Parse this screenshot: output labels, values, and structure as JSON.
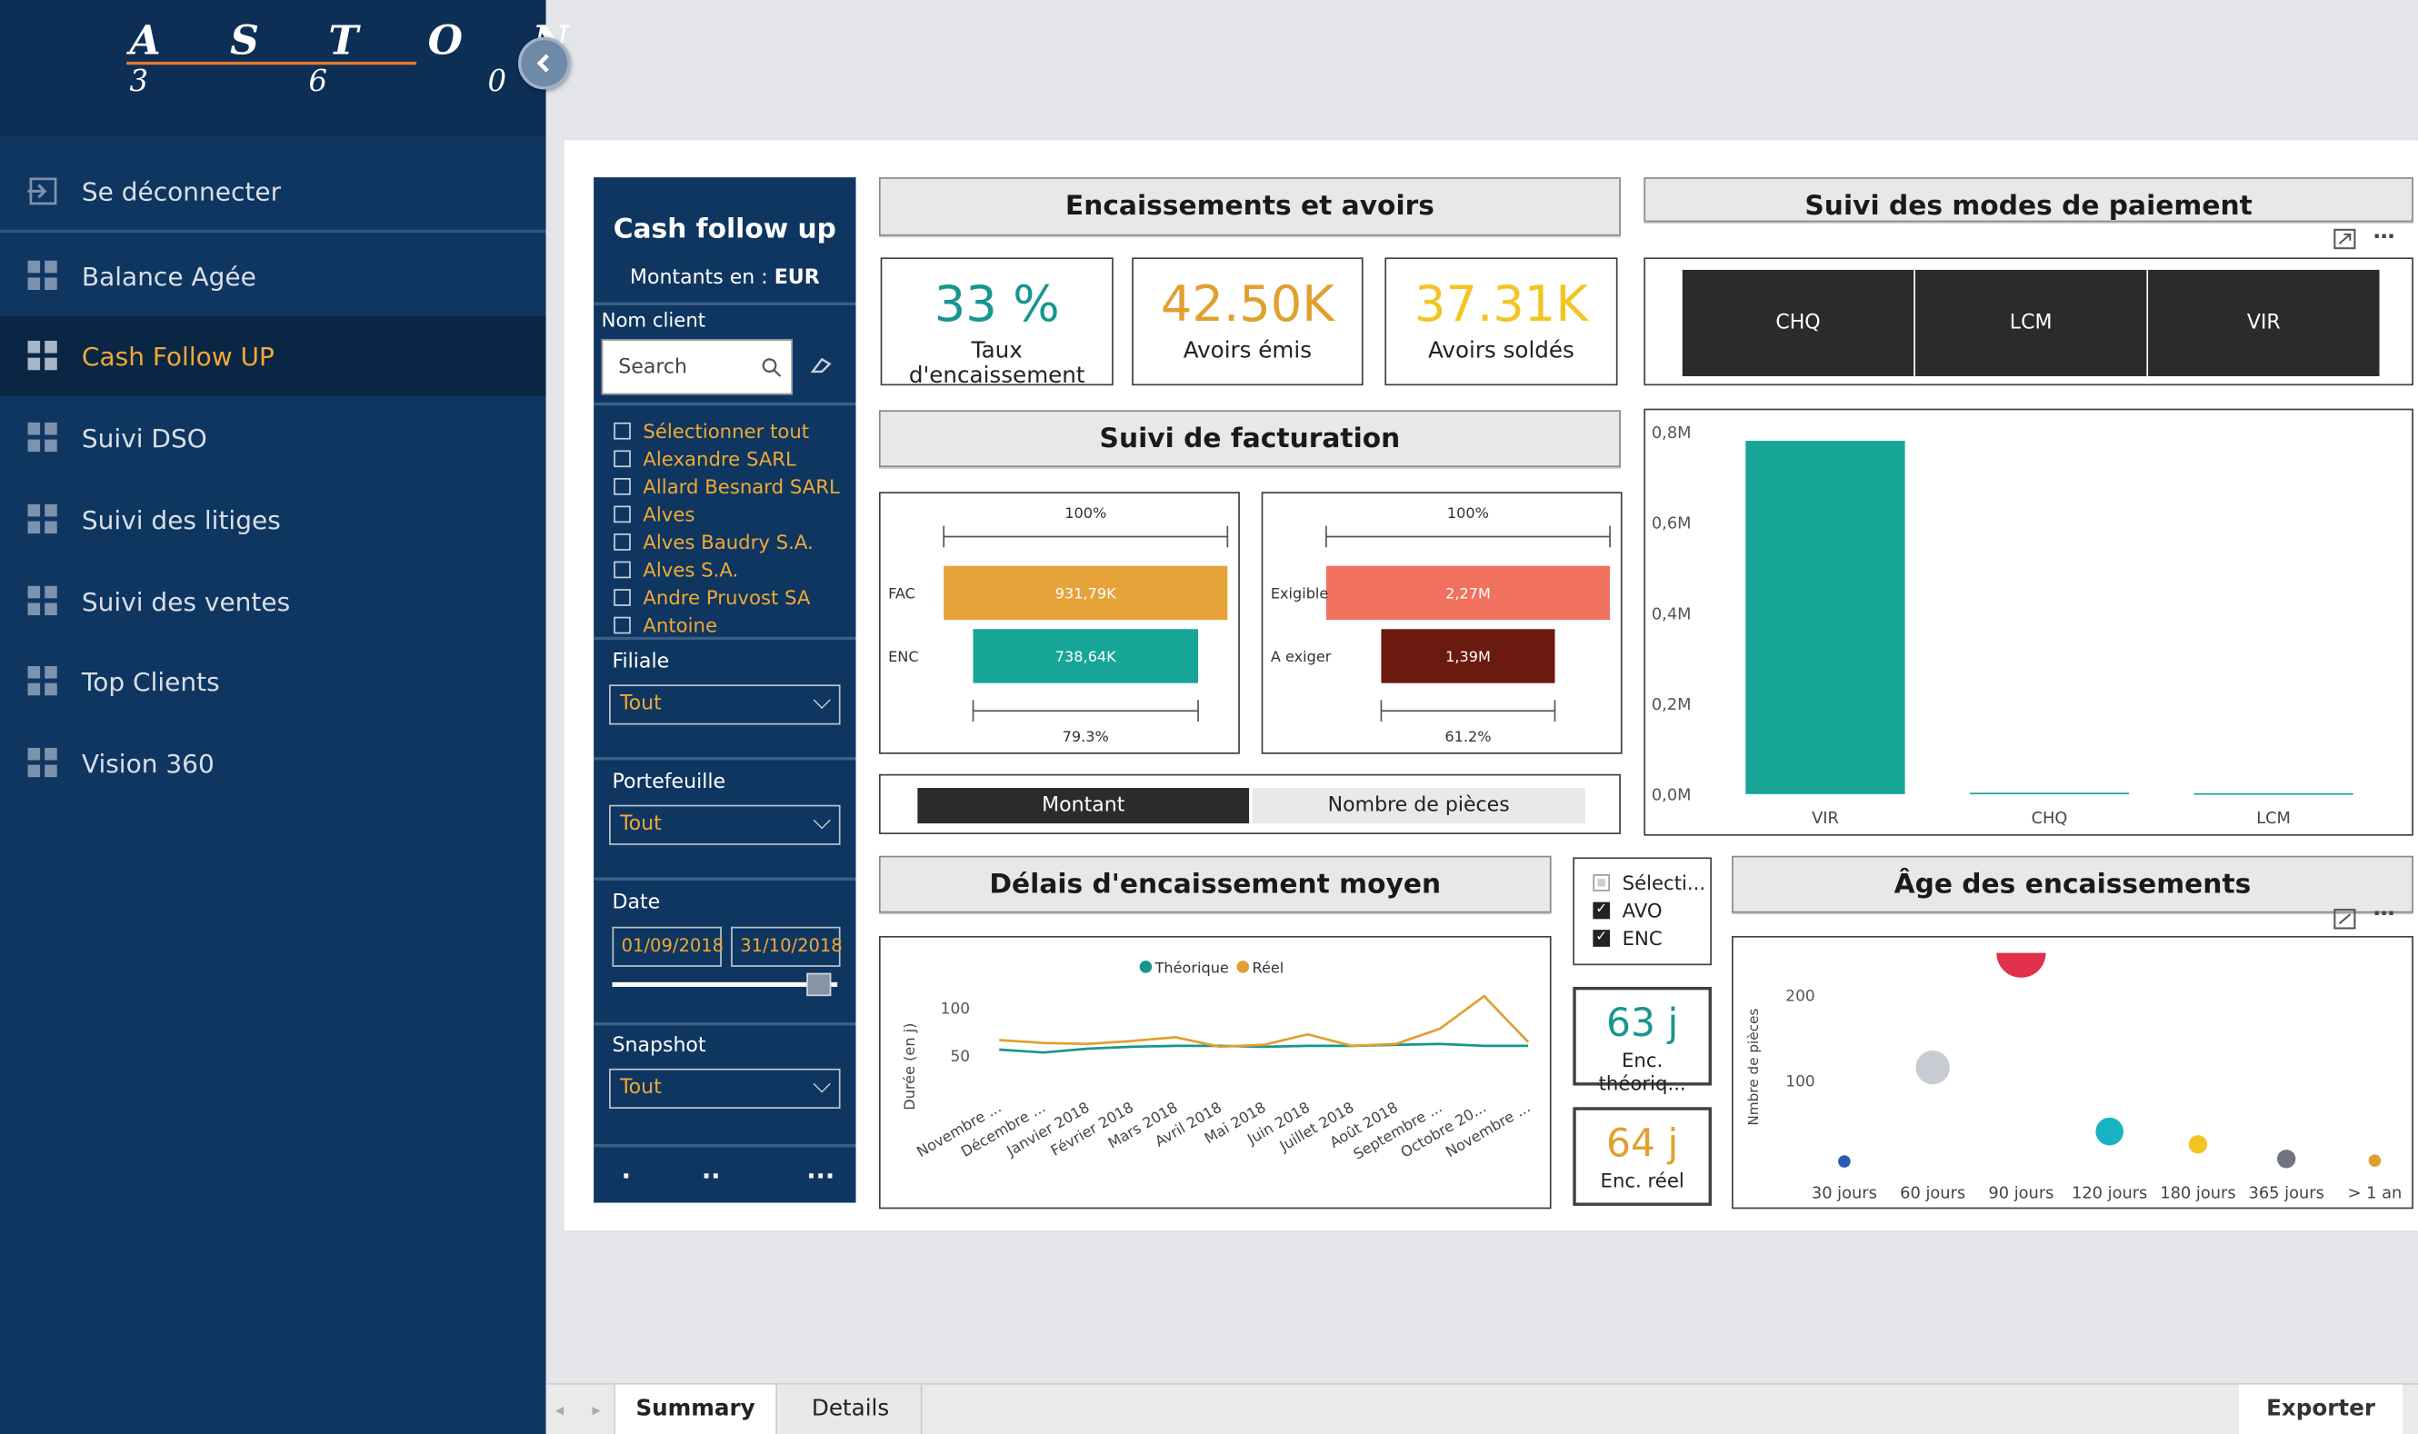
{
  "brand": {
    "logo_top": "A S T O N",
    "logo_bottom": "3 6 0"
  },
  "sidebar": {
    "items": [
      {
        "label": "Se déconnecter",
        "icon": "logout-icon"
      },
      {
        "label": "Balance Agée",
        "icon": "grid-icon"
      },
      {
        "label": "Cash Follow UP",
        "icon": "grid-icon",
        "active": true
      },
      {
        "label": "Suivi DSO",
        "icon": "grid-icon"
      },
      {
        "label": "Suivi des litiges",
        "icon": "grid-icon"
      },
      {
        "label": "Suivi des ventes",
        "icon": "grid-icon"
      },
      {
        "label": "Top Clients",
        "icon": "grid-icon"
      },
      {
        "label": "Vision 360",
        "icon": "grid-icon"
      }
    ]
  },
  "filters": {
    "title": "Cash follow up",
    "currency_prefix": "Montants en : ",
    "currency": "EUR",
    "client_label": "Nom client",
    "search_placeholder": "Search",
    "clients": [
      "Sélectionner tout",
      "Alexandre SARL",
      "Allard Besnard SARL",
      "Alves",
      "Alves Baudry S.A.",
      "Alves S.A.",
      "Andre Pruvost SA",
      "Antoine"
    ],
    "filiale_label": "Filiale",
    "filiale_value": "Tout",
    "portefeuille_label": "Portefeuille",
    "portefeuille_value": "Tout",
    "date_label": "Date",
    "date_start": "01/09/2018",
    "date_end": "31/10/2018",
    "snapshot_label": "Snapshot",
    "snapshot_value": "Tout",
    "pager": [
      ".",
      "..",
      "..."
    ]
  },
  "encaissements": {
    "title": "Encaissements et avoirs",
    "kpis": [
      {
        "value": "33 %",
        "label": "Taux d'encaissement",
        "color": "#17968f"
      },
      {
        "value": "42.50K",
        "label": "Avoirs émis",
        "color": "#e0a030"
      },
      {
        "value": "37.31K",
        "label": "Avoirs soldés",
        "color": "#f2c523"
      }
    ]
  },
  "facturation": {
    "title": "Suivi de facturation",
    "funnel1": {
      "top_pct": "100%",
      "bottom_pct": "79.3%",
      "rows": [
        {
          "label": "FAC",
          "value": "931,79K",
          "color": "#e6a33a",
          "fraction": 1.0
        },
        {
          "label": "ENC",
          "value": "738,64K",
          "color": "#16a596",
          "fraction": 0.793
        }
      ]
    },
    "funnel2": {
      "top_pct": "100%",
      "bottom_pct": "61.2%",
      "rows": [
        {
          "label": "Exigible",
          "value": "2,27M",
          "color": "#f1715f",
          "fraction": 1.0
        },
        {
          "label": "A exiger",
          "value": "1,39M",
          "color": "#6b1a0f",
          "fraction": 0.612
        }
      ]
    },
    "toggle": [
      "Montant",
      "Nombre de pièces"
    ]
  },
  "paiement": {
    "title": "Suivi des modes de paiement",
    "buttons": [
      "CHQ",
      "LCM",
      "VIR"
    ],
    "chart_data": {
      "type": "bar",
      "categories": [
        "VIR",
        "CHQ",
        "LCM"
      ],
      "values": [
        0.78,
        0.003,
        0.002
      ],
      "ylim": [
        0,
        0.8
      ],
      "yticks": [
        "0,0M",
        "0,2M",
        "0,4M",
        "0,6M",
        "0,8M"
      ],
      "color": "#17a596"
    }
  },
  "delais": {
    "title": "Délais d'encaissement moyen",
    "chart_data": {
      "type": "line",
      "ylabel": "Durée (en j)",
      "yticks": [
        "50",
        "100"
      ],
      "ylim": [
        20,
        125
      ],
      "categories": [
        "Novembre ...",
        "Décembre ...",
        "Janvier 2018",
        "Février 2018",
        "Mars 2018",
        "Avril 2018",
        "Mai 2018",
        "Juin 2018",
        "Juillet 2018",
        "Août 2018",
        "Septembre ...",
        "Octobre 20...",
        "Novembre ..."
      ],
      "series": [
        {
          "name": "Théorique",
          "color": "#17968f",
          "values": [
            56,
            53,
            57,
            59,
            60,
            60,
            59,
            60,
            60,
            61,
            62,
            60,
            60
          ]
        },
        {
          "name": "Réel",
          "color": "#e0a030",
          "values": [
            66,
            63,
            62,
            65,
            69,
            59,
            61,
            72,
            60,
            62,
            78,
            112,
            64
          ]
        }
      ]
    }
  },
  "type_filter": {
    "items": [
      {
        "label": "Sélecti...",
        "checked": false
      },
      {
        "label": "AVO",
        "checked": true
      },
      {
        "label": "ENC",
        "checked": true
      }
    ]
  },
  "enc_kpis": [
    {
      "value": "63 j",
      "label": "Enc. théoriq...",
      "color": "#17968f"
    },
    {
      "value": "64 j",
      "label": "Enc. réel",
      "color": "#e0a030"
    }
  ],
  "age": {
    "title": "Âge des encaissements",
    "chart_data": {
      "type": "scatter",
      "ylabel": "Nmbre de pièces",
      "yticks": [
        "100",
        "200"
      ],
      "ylim": [
        0,
        240
      ],
      "categories": [
        "30 jours",
        "60 jours",
        "90 jours",
        "120 jours",
        "180 jours",
        "365 jours",
        "> 1 an"
      ],
      "values": [
        5,
        115,
        250,
        40,
        25,
        8,
        6
      ],
      "colors": [
        "#2a5bb0",
        "#c8ccd2",
        "#e0304a",
        "#17b3c0",
        "#f2c523",
        "#707486",
        "#e0a030"
      ],
      "sizes": [
        4,
        11,
        16,
        9,
        6,
        6,
        4
      ]
    }
  },
  "tabs": [
    "Summary",
    "Details"
  ],
  "export_label": "Exporter"
}
